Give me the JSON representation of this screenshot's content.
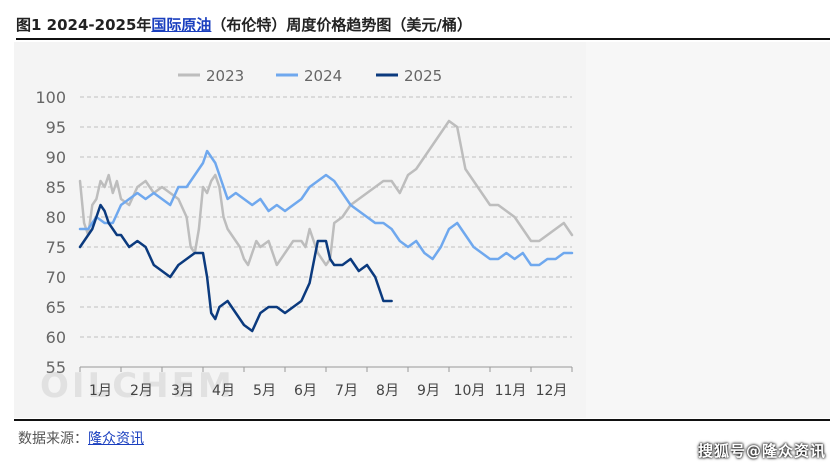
{
  "header": {
    "prefix": "图1 2024-2025年",
    "link": "国际原油",
    "suffix": "（布伦特）周度价格趋势图（美元/桶）"
  },
  "footer": {
    "source_label": "数据来源：",
    "source_link": "隆众资讯",
    "watermark": "搜狐号@隆众资讯",
    "logo": "OILCHEM"
  },
  "chart_data": {
    "type": "line",
    "title": "2024-2025年国际原油（布伦特）周度价格趋势图（美元/桶）",
    "xlabel": "",
    "ylabel": "",
    "ylim": [
      55,
      100
    ],
    "yticks": [
      "100",
      "95",
      "90",
      "85",
      "80",
      "75",
      "70",
      "65",
      "60",
      "55"
    ],
    "xlim": [
      1,
      13
    ],
    "xticks": [
      "1月",
      "2月",
      "3月",
      "4月",
      "5月",
      "6月",
      "7月",
      "8月",
      "9月",
      "10月",
      "11月",
      "12月"
    ],
    "grid": true,
    "legend": "top-center",
    "series": [
      {
        "name": "2023",
        "color": "#bdbdbd",
        "x": [
          1.0,
          1.1,
          1.2,
          1.3,
          1.4,
          1.5,
          1.6,
          1.7,
          1.8,
          1.9,
          2.0,
          2.2,
          2.4,
          2.6,
          2.8,
          3.0,
          3.2,
          3.4,
          3.6,
          3.7,
          3.8,
          3.9,
          4.0,
          4.1,
          4.2,
          4.3,
          4.4,
          4.5,
          4.6,
          4.7,
          4.8,
          4.9,
          5.0,
          5.1,
          5.2,
          5.3,
          5.4,
          5.6,
          5.8,
          6.0,
          6.2,
          6.4,
          6.5,
          6.6,
          6.8,
          7.0,
          7.1,
          7.2,
          7.4,
          7.6,
          7.8,
          8.0,
          8.2,
          8.4,
          8.6,
          8.8,
          9.0,
          9.2,
          9.4,
          9.6,
          9.8,
          10.0,
          10.2,
          10.4,
          10.6,
          10.8,
          11.0,
          11.2,
          11.4,
          11.6,
          11.8,
          12.0,
          12.2,
          12.4,
          12.6,
          12.8,
          13.0
        ],
        "values": [
          86,
          79,
          77,
          82,
          83,
          86,
          85,
          87,
          84,
          86,
          83,
          82,
          85,
          86,
          84,
          85,
          84,
          83,
          80,
          75,
          74,
          78,
          85,
          84,
          86,
          87,
          85,
          80,
          78,
          77,
          76,
          75,
          73,
          72,
          74,
          76,
          75,
          76,
          72,
          74,
          76,
          76,
          75,
          78,
          74,
          72,
          73,
          79,
          80,
          82,
          83,
          84,
          85,
          86,
          86,
          84,
          87,
          88,
          90,
          92,
          94,
          96,
          95,
          88,
          86,
          84,
          82,
          82,
          81,
          80,
          78,
          76,
          76,
          77,
          78,
          79,
          77
        ]
      },
      {
        "name": "2024",
        "color": "#6fa8ee",
        "x": [
          1.0,
          1.2,
          1.4,
          1.6,
          1.8,
          2.0,
          2.2,
          2.4,
          2.6,
          2.8,
          3.0,
          3.2,
          3.4,
          3.6,
          3.8,
          4.0,
          4.1,
          4.2,
          4.3,
          4.4,
          4.6,
          4.8,
          5.0,
          5.2,
          5.4,
          5.6,
          5.8,
          6.0,
          6.2,
          6.4,
          6.6,
          6.8,
          7.0,
          7.2,
          7.4,
          7.6,
          7.8,
          8.0,
          8.2,
          8.4,
          8.6,
          8.8,
          9.0,
          9.2,
          9.4,
          9.6,
          9.8,
          10.0,
          10.2,
          10.4,
          10.6,
          10.8,
          11.0,
          11.2,
          11.4,
          11.6,
          11.8,
          12.0,
          12.2,
          12.4,
          12.6,
          12.8,
          13.0
        ],
        "values": [
          78,
          78,
          80,
          79,
          79,
          82,
          83,
          84,
          83,
          84,
          83,
          82,
          85,
          85,
          87,
          89,
          91,
          90,
          89,
          87,
          83,
          84,
          83,
          82,
          83,
          81,
          82,
          81,
          82,
          83,
          85,
          86,
          87,
          86,
          84,
          82,
          81,
          80,
          79,
          79,
          78,
          76,
          75,
          76,
          74,
          73,
          75,
          78,
          79,
          77,
          75,
          74,
          73,
          73,
          74,
          73,
          74,
          72,
          72,
          73,
          73,
          74,
          74
        ]
      },
      {
        "name": "2025",
        "color": "#0b3a7e",
        "x": [
          1.0,
          1.1,
          1.2,
          1.3,
          1.4,
          1.5,
          1.6,
          1.7,
          1.8,
          1.9,
          2.0,
          2.2,
          2.4,
          2.6,
          2.8,
          3.0,
          3.2,
          3.4,
          3.6,
          3.8,
          4.0,
          4.1,
          4.2,
          4.3,
          4.4,
          4.6,
          4.8,
          5.0,
          5.2,
          5.4,
          5.6,
          5.8,
          6.0,
          6.2,
          6.4,
          6.6,
          6.8,
          7.0,
          7.1,
          7.2,
          7.4,
          7.6,
          7.8,
          8.0,
          8.2,
          8.4,
          8.6
        ],
        "values": [
          75,
          76,
          77,
          78,
          80,
          82,
          81,
          79,
          78,
          77,
          77,
          75,
          76,
          75,
          72,
          71,
          70,
          72,
          73,
          74,
          74,
          70,
          64,
          63,
          65,
          66,
          64,
          62,
          61,
          64,
          65,
          65,
          64,
          65,
          66,
          69,
          76,
          76,
          73,
          72,
          72,
          73,
          71,
          72,
          70,
          66,
          66
        ]
      }
    ]
  }
}
